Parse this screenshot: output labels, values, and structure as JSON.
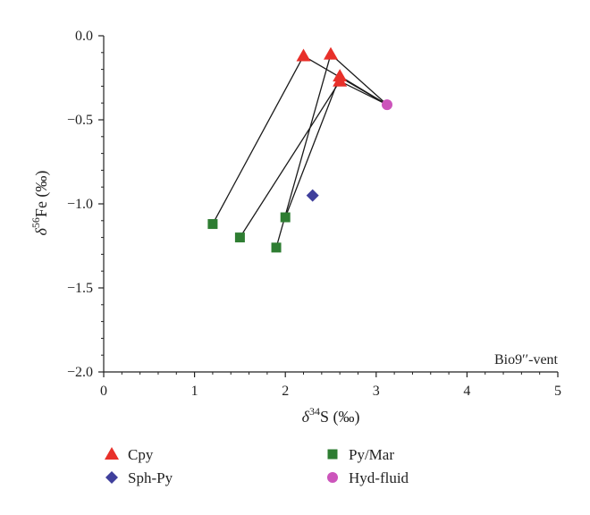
{
  "chart_data": {
    "type": "scatter",
    "xlabel": {
      "delta": "δ",
      "sup": "34",
      "rest": "S (‰)"
    },
    "ylabel": {
      "delta": "δ",
      "sup": "56",
      "rest": "Fe (‰)"
    },
    "xlim": [
      0,
      5
    ],
    "ylim": [
      -2.0,
      0.0
    ],
    "x_ticks": [
      "0",
      "1",
      "2",
      "3",
      "4",
      "5"
    ],
    "y_ticks": [
      "0.0",
      "−0.5",
      "−1.0",
      "−1.5",
      "−2.0"
    ],
    "annotation": "Bio9′′-vent",
    "grid": false,
    "legend_position": "bottom",
    "series": [
      {
        "name": "Cpy",
        "marker": "triangle",
        "color": "#e8302a",
        "points": [
          [
            2.2,
            -0.12
          ],
          [
            2.5,
            -0.11
          ],
          [
            2.6,
            -0.24
          ],
          [
            2.6,
            -0.27
          ]
        ]
      },
      {
        "name": "Py/Mar",
        "marker": "square",
        "color": "#2e7d32",
        "points": [
          [
            1.2,
            -1.12
          ],
          [
            1.5,
            -1.2
          ],
          [
            1.9,
            -1.26
          ],
          [
            2.0,
            -1.08
          ]
        ]
      },
      {
        "name": "Sph-Py",
        "marker": "diamond",
        "color": "#3f3f9c",
        "points": [
          [
            2.3,
            -0.95
          ]
        ]
      },
      {
        "name": "Hyd-fluid",
        "marker": "circle",
        "color": "#cc55bb",
        "points": [
          [
            3.12,
            -0.41
          ]
        ]
      }
    ],
    "connections": [
      [
        [
          1.2,
          -1.12
        ],
        [
          2.2,
          -0.12
        ]
      ],
      [
        [
          1.5,
          -1.2
        ],
        [
          2.6,
          -0.27
        ]
      ],
      [
        [
          1.9,
          -1.26
        ],
        [
          2.5,
          -0.11
        ]
      ],
      [
        [
          2.0,
          -1.08
        ],
        [
          2.6,
          -0.24
        ]
      ],
      [
        [
          2.2,
          -0.12
        ],
        [
          3.12,
          -0.41
        ]
      ],
      [
        [
          2.5,
          -0.11
        ],
        [
          3.12,
          -0.41
        ]
      ],
      [
        [
          2.6,
          -0.24
        ],
        [
          3.12,
          -0.41
        ]
      ],
      [
        [
          2.6,
          -0.27
        ],
        [
          3.12,
          -0.41
        ]
      ]
    ]
  }
}
